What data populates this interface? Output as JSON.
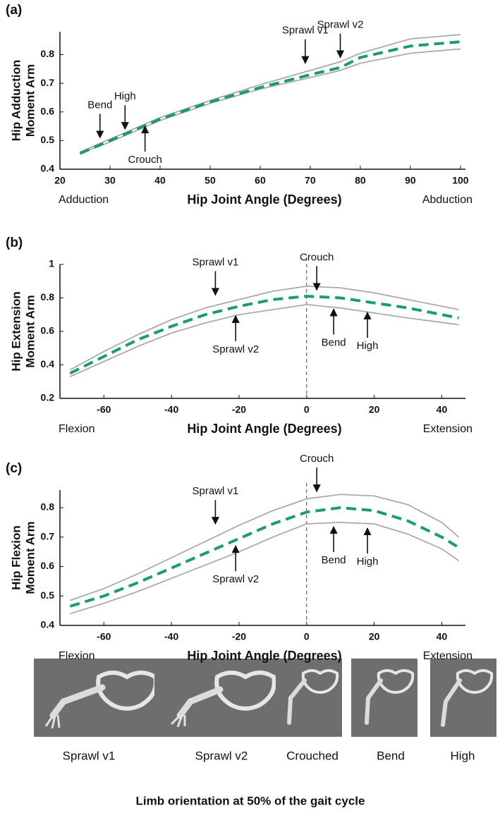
{
  "chart_data": [
    {
      "type": "line",
      "panel_label": "(a)",
      "ylabel": [
        "Hip Adduction",
        "Moment Arm"
      ],
      "xlabel": "Hip Joint Angle (Degrees)",
      "x_left_label": "Adduction",
      "x_right_label": "Abduction",
      "xlim": [
        20,
        101
      ],
      "xticks": [
        20,
        30,
        40,
        50,
        60,
        70,
        80,
        90,
        100
      ],
      "ylim": [
        0.4,
        0.88
      ],
      "yticks": [
        0.4,
        0.5,
        0.6,
        0.7,
        0.8
      ],
      "x": [
        24,
        30,
        40,
        50,
        60,
        70,
        76,
        80,
        90,
        100
      ],
      "series": [
        {
          "color": "#aaaaaa",
          "linestyle": "solid",
          "values": [
            0.46,
            0.505,
            0.58,
            0.64,
            0.695,
            0.745,
            0.775,
            0.805,
            0.855,
            0.87
          ]
        },
        {
          "color": "#aaaaaa",
          "linestyle": "solid",
          "values": [
            0.455,
            0.495,
            0.57,
            0.63,
            0.68,
            0.72,
            0.745,
            0.77,
            0.805,
            0.82
          ]
        },
        {
          "color": "#1a9a78",
          "linestyle": "dashed",
          "values": [
            0.455,
            0.5,
            0.575,
            0.635,
            0.685,
            0.73,
            0.755,
            0.79,
            0.83,
            0.845
          ]
        }
      ],
      "annotations": [
        {
          "text": "Bend",
          "x": 28,
          "y": 0.5,
          "direction": "down"
        },
        {
          "text": "High",
          "x": 33,
          "y": 0.53,
          "direction": "down"
        },
        {
          "text": "Crouch",
          "x": 37,
          "y": 0.56,
          "direction": "up"
        },
        {
          "text": "Sprawl v1",
          "x": 69,
          "y": 0.76,
          "direction": "down"
        },
        {
          "text": "Sprawl v2",
          "x": 76,
          "y": 0.78,
          "direction": "down"
        }
      ]
    },
    {
      "type": "line",
      "panel_label": "(b)",
      "ylabel": [
        "Hip Extension",
        "Moment Arm"
      ],
      "xlabel": "Hip Joint Angle (Degrees)",
      "x_left_label": "Flexion",
      "x_right_label": "Extension",
      "xlim": [
        -73,
        47
      ],
      "xticks": [
        -60,
        -40,
        -20,
        0,
        20,
        40
      ],
      "ylim": [
        0.2,
        1
      ],
      "yticks": [
        0.2,
        0.4,
        0.6,
        0.8,
        1
      ],
      "vline": 0,
      "x": [
        -70,
        -60,
        -50,
        -40,
        -30,
        -20,
        -10,
        0,
        10,
        20,
        30,
        45
      ],
      "series": [
        {
          "color": "#aaaaaa",
          "linestyle": "solid",
          "values": [
            0.37,
            0.48,
            0.58,
            0.67,
            0.74,
            0.79,
            0.84,
            0.87,
            0.86,
            0.83,
            0.79,
            0.73
          ]
        },
        {
          "color": "#aaaaaa",
          "linestyle": "solid",
          "values": [
            0.33,
            0.42,
            0.51,
            0.59,
            0.65,
            0.7,
            0.73,
            0.76,
            0.74,
            0.71,
            0.68,
            0.64
          ]
        },
        {
          "color": "#1a9a78",
          "linestyle": "dashed",
          "values": [
            0.35,
            0.45,
            0.55,
            0.63,
            0.7,
            0.75,
            0.79,
            0.81,
            0.8,
            0.77,
            0.74,
            0.68
          ]
        }
      ],
      "annotations": [
        {
          "text": "Sprawl v1",
          "x": -27,
          "y": 0.8,
          "direction": "down"
        },
        {
          "text": "Sprawl v2",
          "x": -21,
          "y": 0.71,
          "direction": "up"
        },
        {
          "text": "Crouch",
          "x": 3,
          "y": 0.83,
          "direction": "down"
        },
        {
          "text": "Bend",
          "x": 8,
          "y": 0.75,
          "direction": "up"
        },
        {
          "text": "High",
          "x": 18,
          "y": 0.73,
          "direction": "up"
        }
      ]
    },
    {
      "type": "line",
      "panel_label": "(c)",
      "ylabel": [
        "Hip Flexion",
        "Moment Arm"
      ],
      "xlabel": "Hip Joint Angle (Degrees)",
      "x_left_label": "Flexion",
      "x_right_label": "Extension",
      "xlim": [
        -73,
        47
      ],
      "xticks": [
        -60,
        -40,
        -20,
        0,
        20,
        40
      ],
      "ylim": [
        0.4,
        0.86
      ],
      "yticks": [
        0.4,
        0.5,
        0.6,
        0.7,
        0.8
      ],
      "vline": 0,
      "x": [
        -70,
        -60,
        -50,
        -40,
        -30,
        -20,
        -10,
        0,
        10,
        20,
        30,
        40,
        45
      ],
      "series": [
        {
          "color": "#aaaaaa",
          "linestyle": "solid",
          "values": [
            0.485,
            0.525,
            0.575,
            0.63,
            0.685,
            0.74,
            0.79,
            0.83,
            0.845,
            0.84,
            0.81,
            0.75,
            0.7
          ]
        },
        {
          "color": "#aaaaaa",
          "linestyle": "solid",
          "values": [
            0.44,
            0.475,
            0.515,
            0.56,
            0.605,
            0.65,
            0.7,
            0.745,
            0.75,
            0.745,
            0.71,
            0.66,
            0.62
          ]
        },
        {
          "color": "#1a9a78",
          "linestyle": "dashed",
          "values": [
            0.465,
            0.5,
            0.545,
            0.595,
            0.645,
            0.695,
            0.745,
            0.785,
            0.8,
            0.79,
            0.755,
            0.7,
            0.665
          ]
        }
      ],
      "annotations": [
        {
          "text": "Sprawl v1",
          "x": -27,
          "y": 0.735,
          "direction": "down"
        },
        {
          "text": "Sprawl v2",
          "x": -21,
          "y": 0.68,
          "direction": "up"
        },
        {
          "text": "Crouch",
          "x": 3,
          "y": 0.845,
          "direction": "down"
        },
        {
          "text": "Bend",
          "x": 8,
          "y": 0.745,
          "direction": "up"
        },
        {
          "text": "High",
          "x": 18,
          "y": 0.74,
          "direction": "up"
        }
      ]
    }
  ],
  "orientation_panel": {
    "labels": [
      "Sprawl v1",
      "Sprawl v2",
      "Crouched",
      "Bend",
      "High"
    ],
    "caption": "Limb orientation at 50% of the gait cycle"
  }
}
